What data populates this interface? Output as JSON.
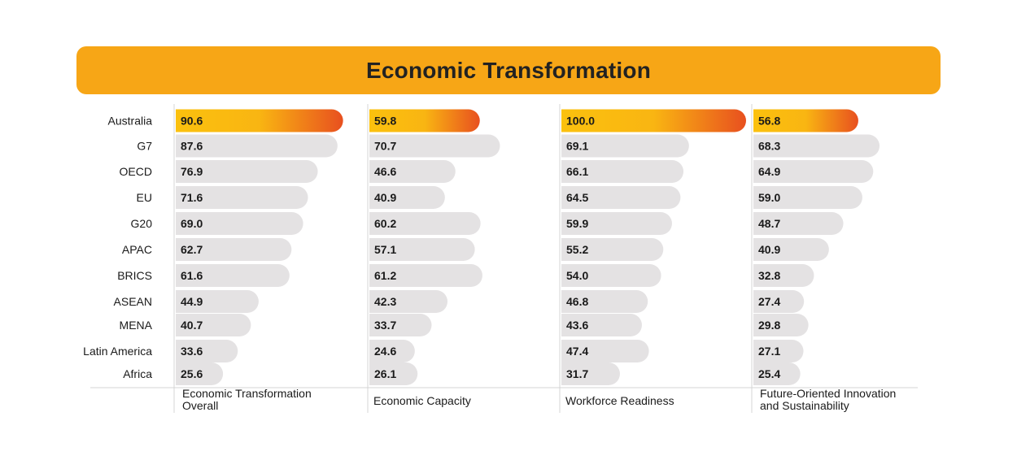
{
  "title": "Economic Transformation",
  "colors": {
    "banner": "#f7a616",
    "highlight_start": "#fbc10e",
    "highlight_end": "#e8501f",
    "bar_default": "#e4e2e3",
    "divider": "#d4d4d4"
  },
  "chart_data": {
    "type": "bar",
    "orientation": "horizontal",
    "title": "Economic Transformation",
    "categories": [
      "Australia",
      "G7",
      "OECD",
      "EU",
      "G20",
      "APAC",
      "BRICS",
      "ASEAN",
      "MENA",
      "Latin America",
      "Africa"
    ],
    "highlight_category": "Australia",
    "xlim": [
      0,
      100
    ],
    "series": [
      {
        "name": "Economic Transformation Overall",
        "name_lines": [
          "Economic Transformation",
          "Overall"
        ],
        "values": [
          90.6,
          87.6,
          76.9,
          71.6,
          69.0,
          62.7,
          61.6,
          44.9,
          40.7,
          33.6,
          25.6
        ]
      },
      {
        "name": "Economic Capacity",
        "name_lines": [
          "Economic Capacity"
        ],
        "values": [
          59.8,
          70.7,
          46.6,
          40.9,
          60.2,
          57.1,
          61.2,
          42.3,
          33.7,
          24.6,
          26.1
        ]
      },
      {
        "name": "Workforce Readiness",
        "name_lines": [
          "Workforce Readiness"
        ],
        "values": [
          100.0,
          69.1,
          66.1,
          64.5,
          59.9,
          55.2,
          54.0,
          46.8,
          43.6,
          47.4,
          31.7
        ]
      },
      {
        "name": "Future-Oriented Innovation and Sustainability",
        "name_lines": [
          "Future-Oriented Innovation",
          "and Sustainability"
        ],
        "values": [
          56.8,
          68.3,
          64.9,
          59.0,
          48.7,
          40.9,
          32.8,
          27.4,
          29.8,
          27.1,
          25.4
        ]
      }
    ]
  }
}
